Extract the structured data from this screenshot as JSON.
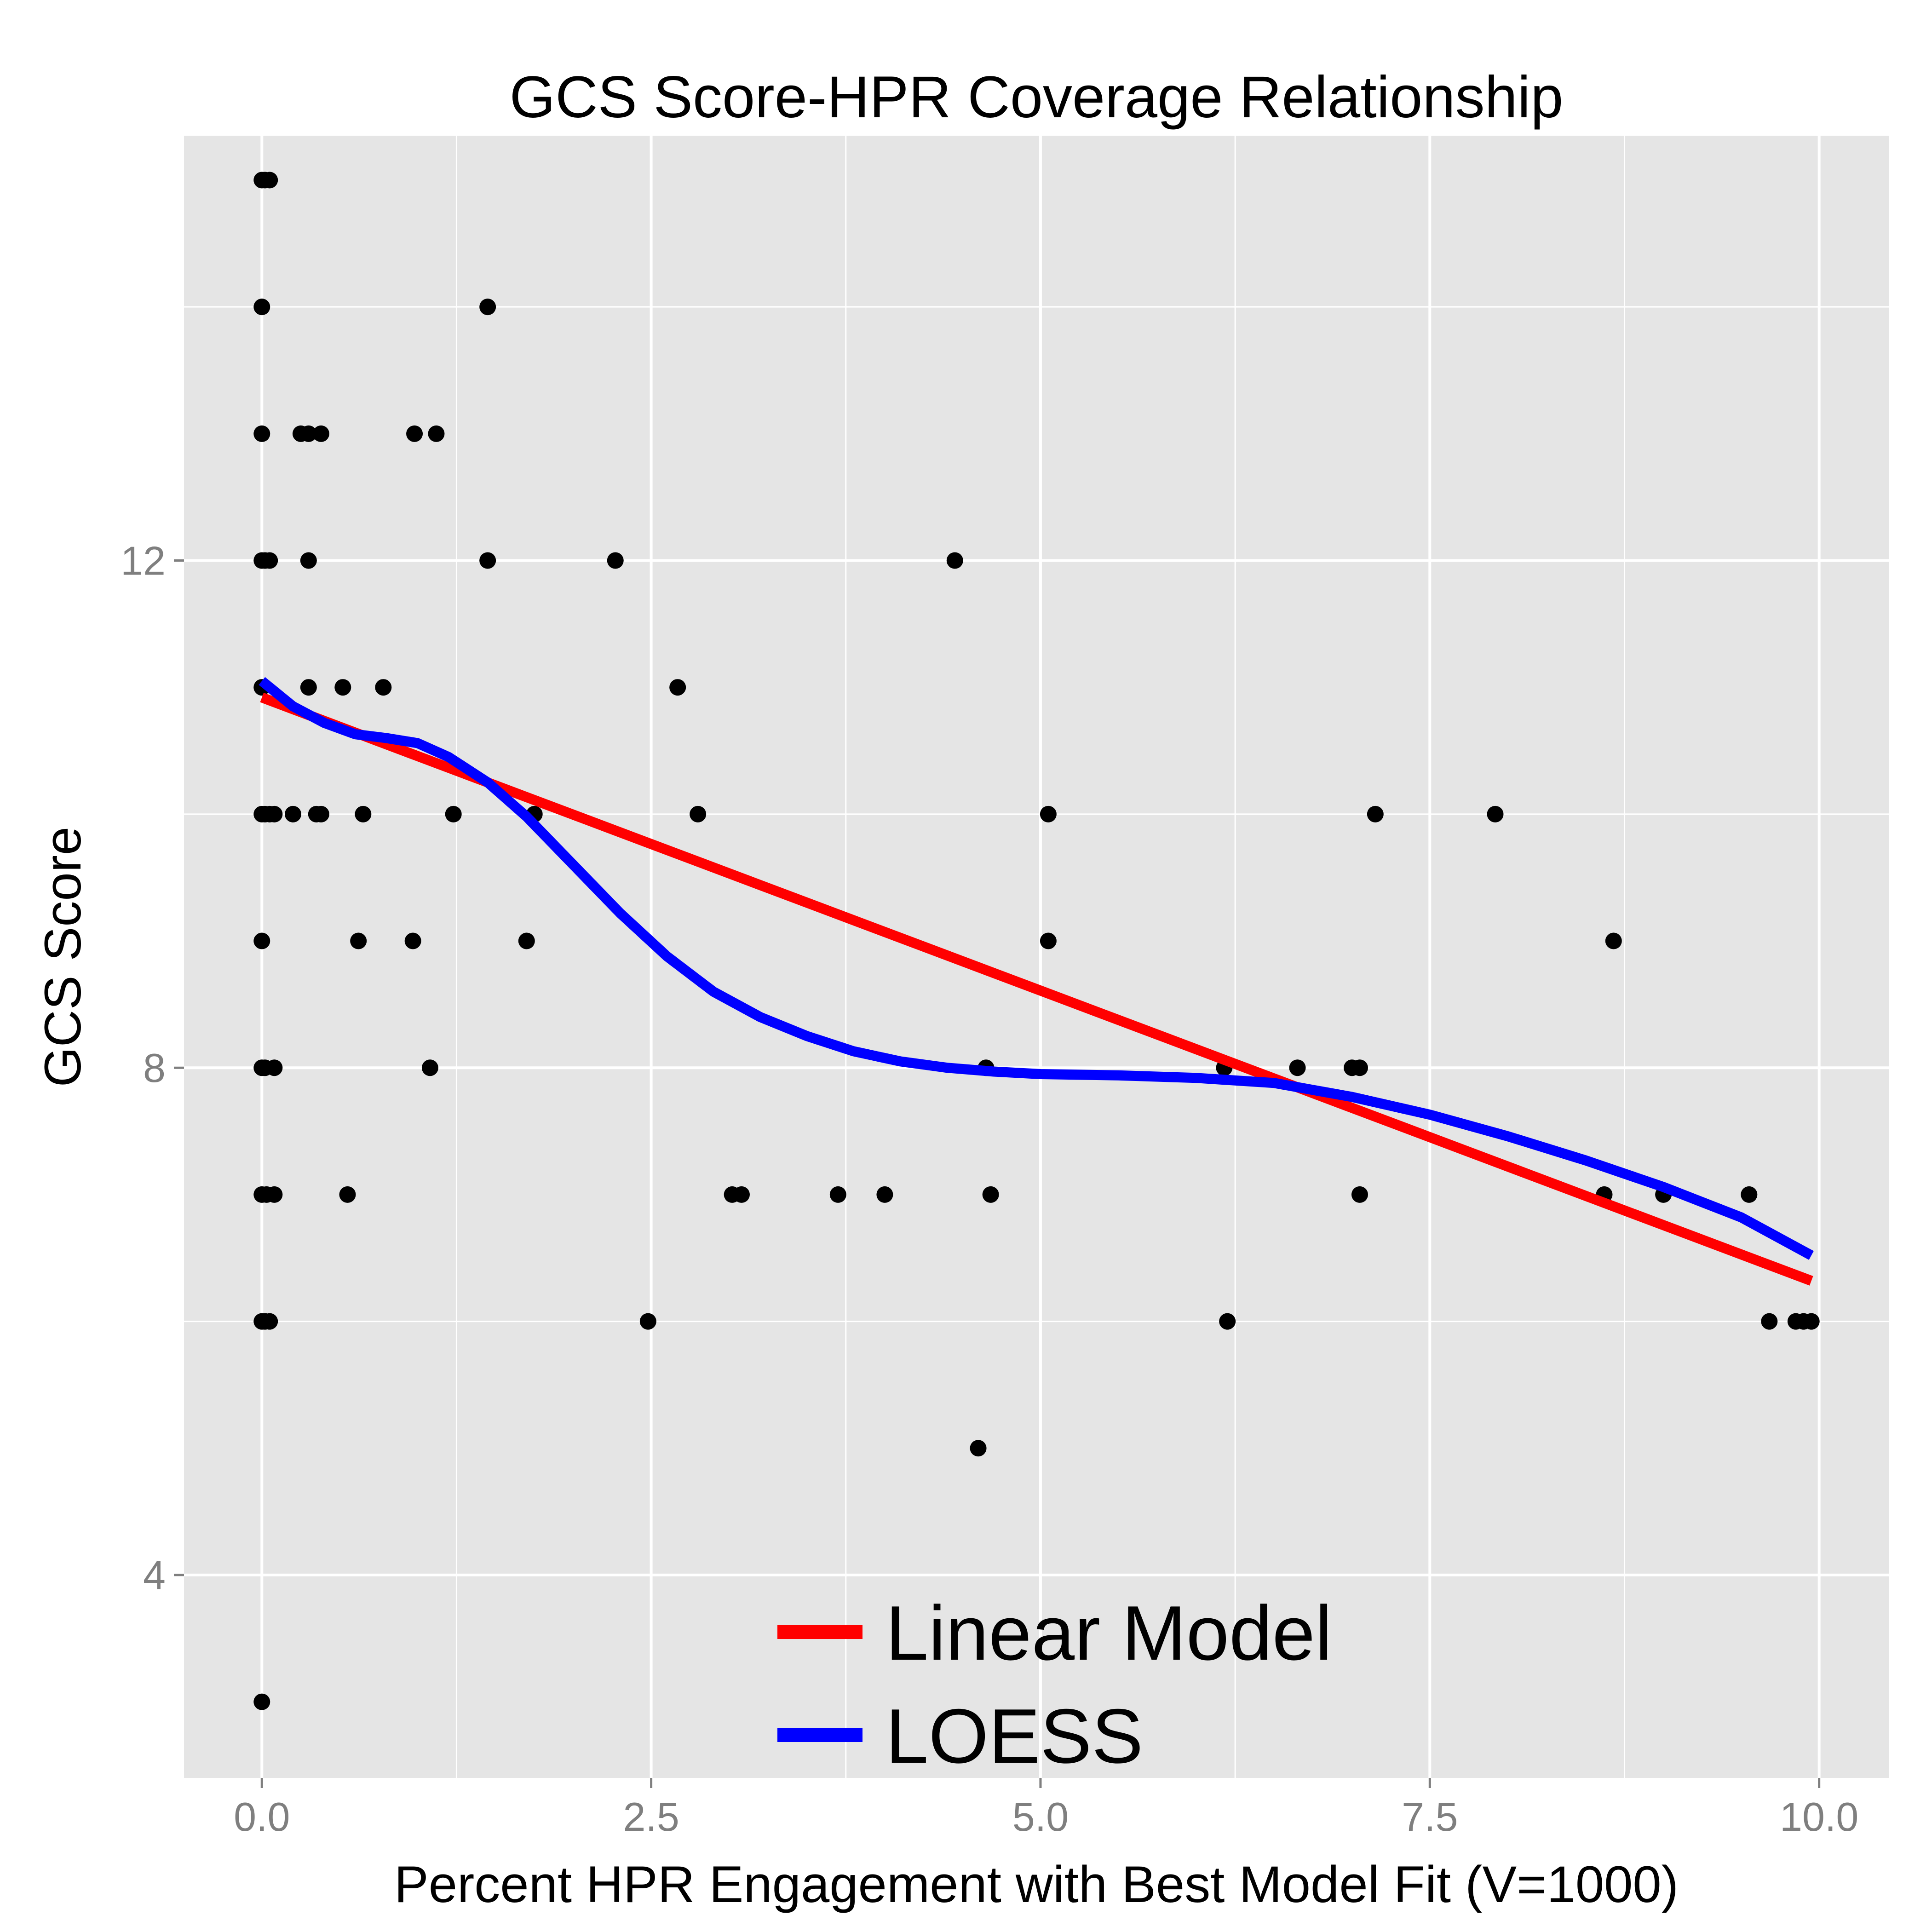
{
  "chart_data": {
    "type": "scatter",
    "title": "GCS Score-HPR Coverage Relationship",
    "xlabel": "Percent HPR Engagement with Best Model Fit (V=1000)",
    "ylabel": "GCS Score",
    "xlim": [
      -0.5,
      10.45
    ],
    "ylim": [
      2.4,
      15.35
    ],
    "x_ticks": [
      0.0,
      2.5,
      5.0,
      7.5,
      10.0
    ],
    "x_tick_labels": [
      "0.0",
      "2.5",
      "5.0",
      "7.5",
      "10.0"
    ],
    "y_ticks": [
      4,
      8,
      12
    ],
    "y_tick_labels": [
      "4",
      "8",
      "12"
    ],
    "grid": true,
    "legend_position": "bottom-center",
    "colors": {
      "panel_background": "#e5e5e5",
      "grid": "#ffffff",
      "points": "#000000",
      "linear_model": "#ff0000",
      "loess": "#0000ff"
    },
    "points": [
      [
        0.0,
        15
      ],
      [
        0.02,
        15
      ],
      [
        0.05,
        15
      ],
      [
        0.0,
        14
      ],
      [
        1.45,
        14
      ],
      [
        0.0,
        13
      ],
      [
        0.25,
        13
      ],
      [
        0.3,
        13
      ],
      [
        0.38,
        13
      ],
      [
        0.98,
        13
      ],
      [
        1.12,
        13
      ],
      [
        0.0,
        12
      ],
      [
        0.02,
        12
      ],
      [
        0.05,
        12
      ],
      [
        0.3,
        12
      ],
      [
        1.45,
        12
      ],
      [
        2.27,
        12
      ],
      [
        4.45,
        12
      ],
      [
        0.0,
        11
      ],
      [
        0.3,
        11
      ],
      [
        0.52,
        11
      ],
      [
        0.78,
        11
      ],
      [
        2.67,
        11
      ],
      [
        0.0,
        10
      ],
      [
        0.02,
        10
      ],
      [
        0.05,
        10
      ],
      [
        0.08,
        10
      ],
      [
        0.2,
        10
      ],
      [
        0.35,
        10
      ],
      [
        0.38,
        10
      ],
      [
        0.65,
        10
      ],
      [
        1.23,
        10
      ],
      [
        1.75,
        10
      ],
      [
        2.8,
        10
      ],
      [
        5.05,
        10
      ],
      [
        7.15,
        10
      ],
      [
        7.92,
        10
      ],
      [
        0.0,
        9
      ],
      [
        0.62,
        9
      ],
      [
        0.97,
        9
      ],
      [
        1.7,
        9
      ],
      [
        5.05,
        9
      ],
      [
        8.68,
        9
      ],
      [
        0.0,
        8
      ],
      [
        0.02,
        8
      ],
      [
        0.08,
        8
      ],
      [
        1.08,
        8
      ],
      [
        4.65,
        8
      ],
      [
        6.18,
        8
      ],
      [
        6.65,
        8
      ],
      [
        7.0,
        8
      ],
      [
        7.05,
        8
      ],
      [
        0.0,
        7
      ],
      [
        0.03,
        7
      ],
      [
        0.08,
        7
      ],
      [
        0.55,
        7
      ],
      [
        3.02,
        7
      ],
      [
        3.08,
        7
      ],
      [
        3.7,
        7
      ],
      [
        4.0,
        7
      ],
      [
        4.68,
        7
      ],
      [
        7.05,
        7
      ],
      [
        8.62,
        7
      ],
      [
        9.0,
        7
      ],
      [
        9.55,
        7
      ],
      [
        0.0,
        6
      ],
      [
        0.02,
        6
      ],
      [
        0.05,
        6
      ],
      [
        2.48,
        6
      ],
      [
        6.2,
        6
      ],
      [
        9.68,
        6
      ],
      [
        9.85,
        6
      ],
      [
        9.9,
        6
      ],
      [
        9.95,
        6
      ],
      [
        4.6,
        5
      ],
      [
        0.0,
        3
      ]
    ],
    "series": [
      {
        "name": "Linear Model",
        "x": [
          0.0,
          9.95
        ],
        "y": [
          10.92,
          6.32
        ]
      },
      {
        "name": "LOESS",
        "x": [
          0.0,
          0.2,
          0.4,
          0.6,
          0.8,
          1.0,
          1.2,
          1.45,
          1.7,
          2.0,
          2.3,
          2.6,
          2.9,
          3.2,
          3.5,
          3.8,
          4.1,
          4.4,
          4.7,
          5.0,
          5.5,
          6.0,
          6.5,
          7.0,
          7.5,
          8.0,
          8.5,
          9.0,
          9.5,
          9.95
        ],
        "y": [
          11.05,
          10.85,
          10.72,
          10.63,
          10.6,
          10.56,
          10.45,
          10.25,
          9.98,
          9.6,
          9.22,
          8.88,
          8.6,
          8.4,
          8.25,
          8.13,
          8.05,
          8.0,
          7.97,
          7.95,
          7.94,
          7.92,
          7.88,
          7.77,
          7.63,
          7.46,
          7.27,
          7.06,
          6.82,
          6.52
        ]
      }
    ]
  }
}
